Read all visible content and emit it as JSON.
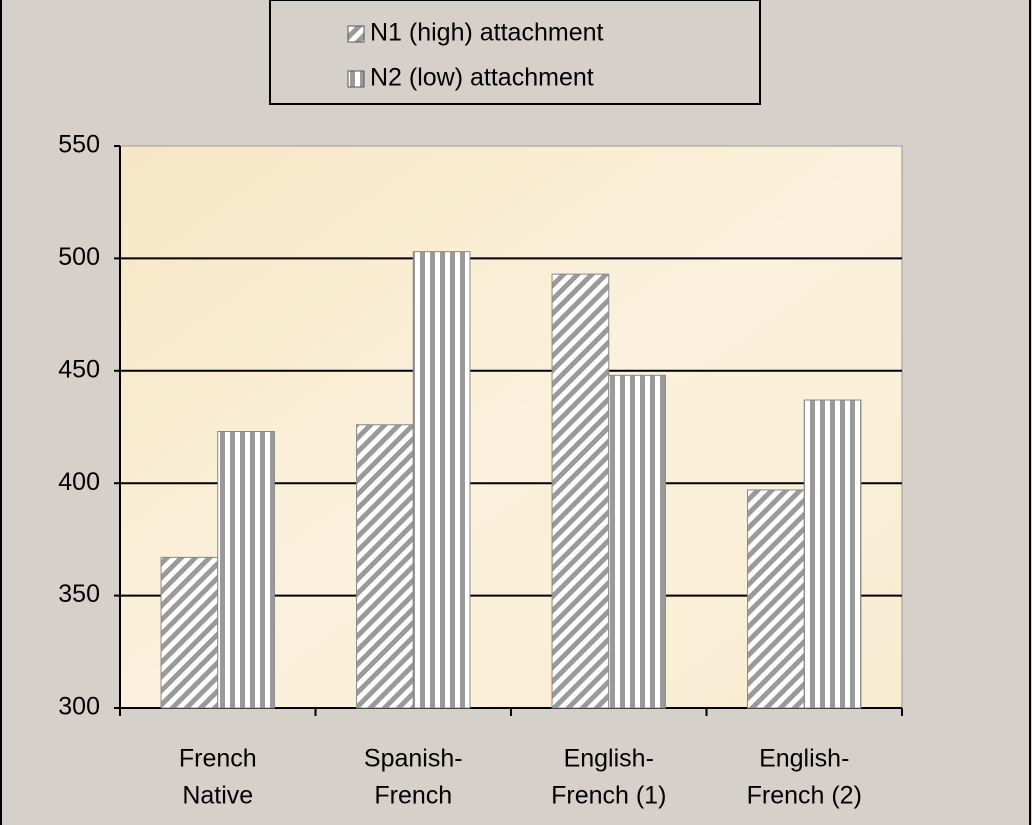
{
  "chart_data": {
    "type": "bar",
    "categories": [
      [
        "French",
        "Native"
      ],
      [
        "Spanish-",
        "French"
      ],
      [
        "English-",
        "French (1)"
      ],
      [
        "English-",
        "French (2)"
      ]
    ],
    "series": [
      {
        "name": "N1 (high) attachment",
        "color": "#9a9a9a",
        "pattern": "diagonal",
        "values": [
          367,
          426,
          493,
          397
        ]
      },
      {
        "name": "N2 (low) attachment",
        "color": "#9a9a9a",
        "pattern": "vertical",
        "values": [
          423,
          503,
          448,
          437
        ]
      }
    ],
    "ylim": [
      300,
      550
    ],
    "yticks": [
      300,
      350,
      400,
      450,
      500,
      550
    ],
    "grid": true,
    "legend": "top"
  }
}
